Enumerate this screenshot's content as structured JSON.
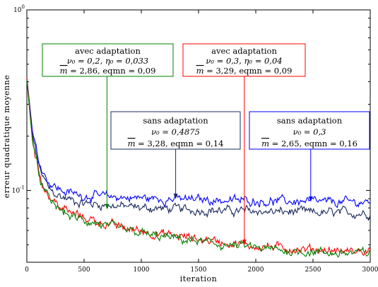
{
  "chart_data": {
    "type": "line",
    "title": "",
    "xlabel": "iteration",
    "ylabel": "erreur quadratique moyenne",
    "xlim": [
      0,
      3000
    ],
    "ylim": [
      0.04,
      1
    ],
    "yscale": "log",
    "grid": false,
    "xticks": [
      0,
      500,
      1000,
      1500,
      2000,
      2500,
      3000
    ],
    "yticks": [
      {
        "value": 1,
        "base": "10",
        "exp": "0"
      },
      {
        "value": 0.1,
        "base": "10",
        "exp": "-1"
      }
    ],
    "colors": {
      "red": "#ff0000",
      "green": "#008000",
      "blue": "#0000ff",
      "navy": "#1a2a5e"
    },
    "series": [
      {
        "color": "navy",
        "x": [
          0,
          50,
          100,
          150,
          200,
          300,
          400,
          500,
          600,
          700,
          800,
          900,
          1000,
          1100,
          1200,
          1300,
          1400,
          1500,
          1600,
          1700,
          1800,
          1900,
          2000,
          2100,
          2200,
          2300,
          2400,
          2500,
          2600,
          2700,
          2800,
          2900,
          3000
        ],
        "y": [
          0.42,
          0.2,
          0.14,
          0.115,
          0.1,
          0.092,
          0.088,
          0.085,
          0.084,
          0.083,
          0.082,
          0.081,
          0.08,
          0.08,
          0.079,
          0.079,
          0.078,
          0.078,
          0.078,
          0.077,
          0.077,
          0.077,
          0.077,
          0.076,
          0.076,
          0.076,
          0.076,
          0.075,
          0.075,
          0.075,
          0.075,
          0.075,
          0.075
        ]
      },
      {
        "color": "blue",
        "x": [
          0,
          50,
          100,
          150,
          200,
          300,
          400,
          500,
          600,
          700,
          800,
          900,
          1000,
          1100,
          1200,
          1300,
          1400,
          1500,
          1600,
          1700,
          1800,
          1900,
          2000,
          2100,
          2200,
          2300,
          2400,
          2500,
          2600,
          2700,
          2800,
          2900,
          3000
        ],
        "y": [
          0.42,
          0.21,
          0.15,
          0.125,
          0.11,
          0.1,
          0.096,
          0.094,
          0.093,
          0.092,
          0.092,
          0.091,
          0.091,
          0.09,
          0.09,
          0.09,
          0.089,
          0.089,
          0.089,
          0.088,
          0.088,
          0.088,
          0.088,
          0.087,
          0.087,
          0.087,
          0.087,
          0.086,
          0.086,
          0.086,
          0.086,
          0.086,
          0.086
        ]
      },
      {
        "color": "red",
        "x": [
          0,
          50,
          100,
          150,
          200,
          300,
          400,
          500,
          600,
          700,
          800,
          900,
          1000,
          1100,
          1200,
          1300,
          1400,
          1500,
          1600,
          1700,
          1800,
          1900,
          2000,
          2100,
          2200,
          2300,
          2400,
          2500,
          2600,
          2700,
          2800,
          2900,
          3000
        ],
        "y": [
          0.42,
          0.19,
          0.13,
          0.105,
          0.092,
          0.08,
          0.074,
          0.071,
          0.068,
          0.065,
          0.063,
          0.061,
          0.06,
          0.058,
          0.057,
          0.056,
          0.055,
          0.054,
          0.053,
          0.052,
          0.051,
          0.05,
          0.049,
          0.049,
          0.048,
          0.048,
          0.047,
          0.047,
          0.047,
          0.046,
          0.046,
          0.046,
          0.046
        ]
      },
      {
        "color": "green",
        "x": [
          0,
          50,
          100,
          150,
          200,
          300,
          400,
          500,
          600,
          700,
          800,
          900,
          1000,
          1100,
          1200,
          1300,
          1400,
          1500,
          1600,
          1700,
          1800,
          1900,
          2000,
          2100,
          2200,
          2300,
          2400,
          2500,
          2600,
          2700,
          2800,
          2900,
          3000
        ],
        "y": [
          0.41,
          0.185,
          0.125,
          0.1,
          0.088,
          0.077,
          0.071,
          0.068,
          0.066,
          0.063,
          0.061,
          0.059,
          0.058,
          0.056,
          0.055,
          0.054,
          0.053,
          0.052,
          0.051,
          0.05,
          0.049,
          0.049,
          0.048,
          0.047,
          0.047,
          0.046,
          0.046,
          0.046,
          0.045,
          0.045,
          0.045,
          0.045,
          0.045
        ]
      }
    ],
    "annotations": [
      {
        "color": "green",
        "heading": "avec adaptation",
        "line1": "ν₀ = 0,2, η₀ = 0,033",
        "m_symbol": "m",
        "line2": " = 2,86, eqmn = 0,09",
        "arrow_x": 700,
        "arrow_y": 0.079
      },
      {
        "color": "red",
        "heading": "avec adaptation",
        "line1": "ν₀ = 0,3, η₀ = 0,04",
        "m_symbol": "m",
        "line2": " = 3,29, eqmn = 0,09",
        "arrow_x": 1900,
        "arrow_y": 0.05
      },
      {
        "color": "navy",
        "heading": "sans adaptation",
        "line1": "ν₀ = 0,4875",
        "m_symbol": "m",
        "line2": " = 3,28, eqmn = 0,14",
        "arrow_x": 1300,
        "arrow_y": 0.09
      },
      {
        "color": "blue",
        "heading": "sans adaptation",
        "line1": "ν₀ = 0,3",
        "m_symbol": "m",
        "line2": " = 2,65, eqmn = 0,16",
        "arrow_x": 2480,
        "arrow_y": 0.087
      }
    ]
  }
}
